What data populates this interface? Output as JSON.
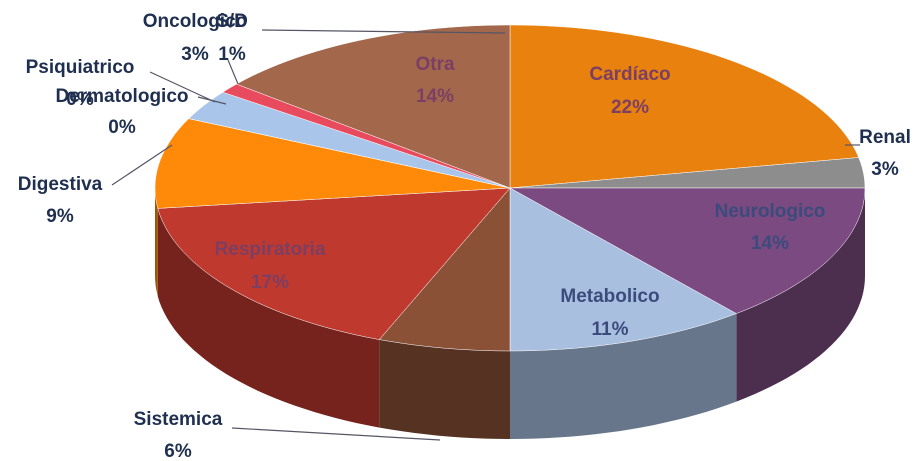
{
  "chart_data": {
    "type": "pie3d",
    "categories": [
      "Cardíaco",
      "Renal",
      "Neurologico",
      "Metabolico",
      "Sistemica",
      "Respiratoria",
      "Digestiva",
      "Dermatologico",
      "Psiquiatrico",
      "Oncologico",
      "S/D",
      "Otra"
    ],
    "values": [
      22,
      3,
      14,
      11,
      6,
      17,
      9,
      0,
      0,
      3,
      1,
      14
    ],
    "value_labels": [
      "22%",
      "3%",
      "14%",
      "11%",
      "6%",
      "17%",
      "9%",
      "0%",
      "0%",
      "3%",
      "1%",
      "14%"
    ],
    "colors": [
      "#e8810e",
      "#8d8d8d",
      "#7a4a80",
      "#a8bfe0",
      "#8a5137",
      "#c0392e",
      "#ff8a0a",
      "#4a6fa5",
      "#6a8fc0",
      "#a9c5ea",
      "#e94b5e",
      "#a3684c"
    ]
  }
}
